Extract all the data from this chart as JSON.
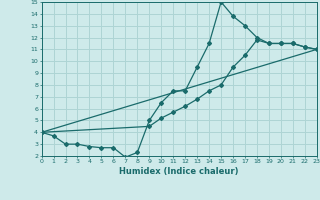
{
  "xlabel": "Humidex (Indice chaleur)",
  "xlim": [
    0,
    23
  ],
  "ylim": [
    2,
    15
  ],
  "xticks": [
    0,
    1,
    2,
    3,
    4,
    5,
    6,
    7,
    8,
    9,
    10,
    11,
    12,
    13,
    14,
    15,
    16,
    17,
    18,
    19,
    20,
    21,
    22,
    23
  ],
  "yticks": [
    2,
    3,
    4,
    5,
    6,
    7,
    8,
    9,
    10,
    11,
    12,
    13,
    14,
    15
  ],
  "bg_color": "#ceeaea",
  "grid_color": "#aed4d4",
  "line_color": "#1a6b6b",
  "line1_x": [
    0,
    1,
    2,
    3,
    4,
    5,
    6,
    7,
    8,
    9,
    10,
    11,
    12,
    13,
    14,
    15,
    16,
    17,
    18,
    19,
    20,
    21,
    22,
    23
  ],
  "line1_y": [
    4.0,
    3.7,
    3.0,
    3.0,
    2.8,
    2.7,
    2.7,
    1.9,
    2.3,
    5.0,
    6.5,
    7.5,
    7.5,
    9.5,
    11.5,
    15.0,
    13.8,
    13.0,
    12.0,
    11.5,
    11.5,
    11.5,
    11.2,
    11.0
  ],
  "line2_x": [
    0,
    9,
    10,
    11,
    12,
    13,
    14,
    15,
    16,
    17,
    18,
    19,
    20,
    21,
    22,
    23
  ],
  "line2_y": [
    4.0,
    4.5,
    5.2,
    5.7,
    6.2,
    6.8,
    7.5,
    8.0,
    9.5,
    10.5,
    11.8,
    11.5,
    11.5,
    11.5,
    11.2,
    11.0
  ],
  "line3_x": [
    0,
    23
  ],
  "line3_y": [
    4.0,
    11.0
  ]
}
